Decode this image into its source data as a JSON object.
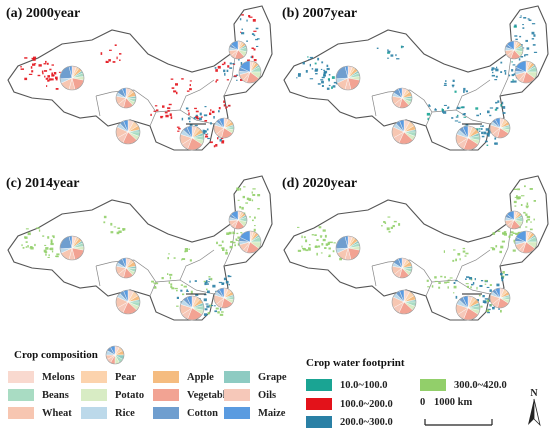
{
  "panels": [
    {
      "title": "(a) 2000year",
      "dominant_class": "100.0~200.0"
    },
    {
      "title": "(b) 2007year",
      "dominant_class": "200.0~300.0"
    },
    {
      "title": "(c) 2014year",
      "dominant_class": "300.0~420.0"
    },
    {
      "title": "(d) 2020year",
      "dominant_class": "300.0~420.0"
    }
  ],
  "crop_legend": {
    "title": "Crop composition",
    "items": [
      {
        "label": "Melons",
        "color": "#f9d9cf"
      },
      {
        "label": "Pear",
        "color": "#fcd3ad"
      },
      {
        "label": "Apple",
        "color": "#f5bc80"
      },
      {
        "label": "Grape",
        "color": "#8ecbc2"
      },
      {
        "label": "Beans",
        "color": "#a9dcc3"
      },
      {
        "label": "Potato",
        "color": "#d8ecc4"
      },
      {
        "label": "Vegetables",
        "color": "#f2a393"
      },
      {
        "label": "Oils",
        "color": "#f6c8b9"
      },
      {
        "label": "Wheat",
        "color": "#f7c6b1"
      },
      {
        "label": "Rice",
        "color": "#bcd9ea"
      },
      {
        "label": "Cotton",
        "color": "#6f9ecf"
      },
      {
        "label": "Maize",
        "color": "#5a9be0"
      }
    ]
  },
  "footprint_legend": {
    "title": "Crop water footprint",
    "items": [
      {
        "label": "10.0~100.0",
        "color": "#1aa493"
      },
      {
        "label": "100.0~200.0",
        "color": "#e3121a"
      },
      {
        "label": "200.0~300.0",
        "color": "#2a80a5"
      },
      {
        "label": "300.0~420.0",
        "color": "#92cf6a"
      }
    ]
  },
  "scale_bar": {
    "start": "0",
    "end": "1000 km"
  },
  "north_label": "N",
  "colors": {
    "boundary": "#555555",
    "land": "#ffffff"
  }
}
